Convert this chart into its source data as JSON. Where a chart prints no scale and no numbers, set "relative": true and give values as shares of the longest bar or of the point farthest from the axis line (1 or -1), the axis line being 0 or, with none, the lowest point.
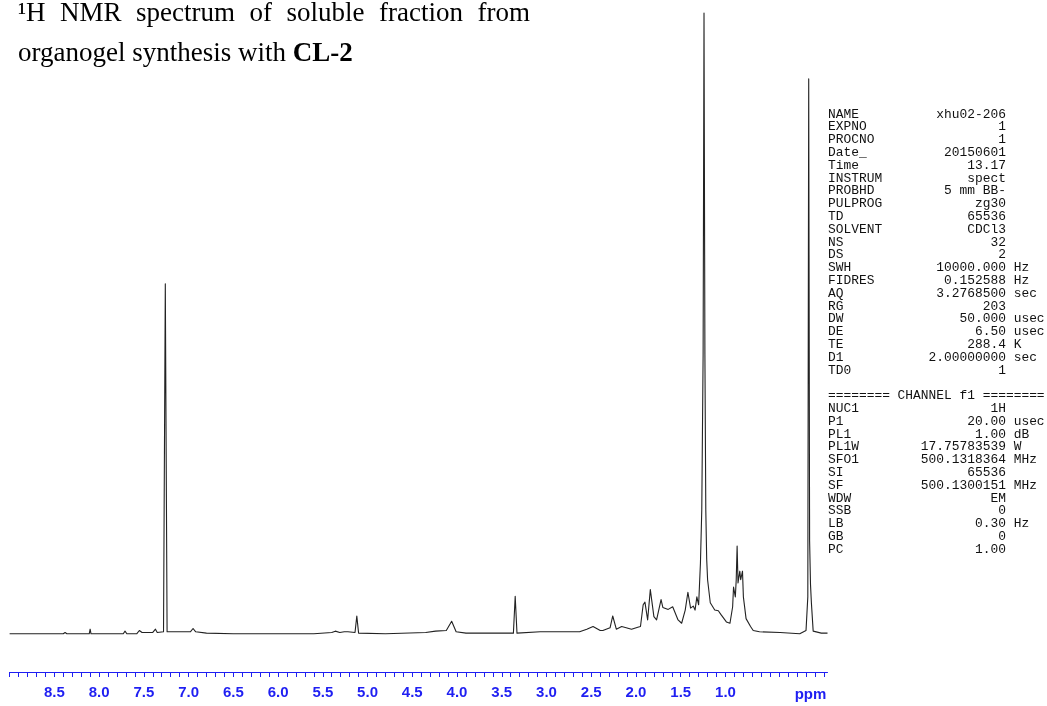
{
  "chart_data": {
    "type": "line",
    "title": "¹H NMR spectrum of soluble fraction from organogel synthesis with CL-2",
    "xlabel": "ppm",
    "relative": true,
    "color": "#222222",
    "marker": "none",
    "grid": false,
    "xlim": [
      9.0,
      -0.14
    ],
    "xticks": [
      {
        "value": 9,
        "label": null
      },
      {
        "value": 8.9,
        "label": null
      },
      {
        "value": 8.8,
        "label": null
      },
      {
        "value": 8.7,
        "label": null
      },
      {
        "value": 8.6,
        "label": null
      },
      8.5,
      {
        "value": 8.4,
        "label": null
      },
      {
        "value": 8.3,
        "label": null
      },
      {
        "value": 8.2,
        "label": null
      },
      {
        "value": 8.1,
        "label": null
      },
      {
        "value": 8,
        "label": "8.0"
      },
      {
        "value": 7.9,
        "label": null
      },
      {
        "value": 7.8,
        "label": null
      },
      {
        "value": 7.7,
        "label": null
      },
      {
        "value": 7.6,
        "label": null
      },
      7.5,
      {
        "value": 7.4,
        "label": null
      },
      {
        "value": 7.3,
        "label": null
      },
      {
        "value": 7.2,
        "label": null
      },
      {
        "value": 7.1,
        "label": null
      },
      {
        "value": 7,
        "label": "7.0"
      },
      {
        "value": 6.9,
        "label": null
      },
      {
        "value": 6.8,
        "label": null
      },
      {
        "value": 6.7,
        "label": null
      },
      {
        "value": 6.6,
        "label": null
      },
      6.5,
      {
        "value": 6.4,
        "label": null
      },
      {
        "value": 6.3,
        "label": null
      },
      {
        "value": 6.2,
        "label": null
      },
      {
        "value": 6.1,
        "label": null
      },
      {
        "value": 6,
        "label": "6.0"
      },
      {
        "value": 5.9,
        "label": null
      },
      {
        "value": 5.8,
        "label": null
      },
      {
        "value": 5.7,
        "label": null
      },
      {
        "value": 5.6,
        "label": null
      },
      5.5,
      {
        "value": 5.4,
        "label": null
      },
      {
        "value": 5.3,
        "label": null
      },
      {
        "value": 5.2,
        "label": null
      },
      {
        "value": 5.1,
        "label": null
      },
      {
        "value": 5,
        "label": "5.0"
      },
      {
        "value": 4.9,
        "label": null
      },
      {
        "value": 4.8,
        "label": null
      },
      {
        "value": 4.7,
        "label": null
      },
      {
        "value": 4.6,
        "label": null
      },
      4.5,
      {
        "value": 4.4,
        "label": null
      },
      {
        "value": 4.3,
        "label": null
      },
      {
        "value": 4.2,
        "label": null
      },
      {
        "value": 4.1,
        "label": null
      },
      {
        "value": 4,
        "label": "4.0"
      },
      {
        "value": 3.9,
        "label": null
      },
      {
        "value": 3.8,
        "label": null
      },
      {
        "value": 3.7,
        "label": null
      },
      {
        "value": 3.6,
        "label": null
      },
      3.5,
      {
        "value": 3.4,
        "label": null
      },
      {
        "value": 3.3,
        "label": null
      },
      {
        "value": 3.2,
        "label": null
      },
      {
        "value": 3.1,
        "label": null
      },
      {
        "value": 3,
        "label": "3.0"
      },
      {
        "value": 2.9,
        "label": null
      },
      {
        "value": 2.8,
        "label": null
      },
      {
        "value": 2.7,
        "label": null
      },
      {
        "value": 2.6,
        "label": null
      },
      2.5,
      {
        "value": 2.4,
        "label": null
      },
      {
        "value": 2.3,
        "label": null
      },
      {
        "value": 2.2,
        "label": null
      },
      {
        "value": 2.1,
        "label": null
      },
      {
        "value": 2,
        "label": "2.0"
      },
      {
        "value": 1.9,
        "label": null
      },
      {
        "value": 1.8,
        "label": null
      },
      {
        "value": 1.7,
        "label": null
      },
      {
        "value": 1.6,
        "label": null
      },
      1.5,
      {
        "value": 1.4,
        "label": null
      },
      {
        "value": 1.3,
        "label": null
      },
      {
        "value": 1.2,
        "label": null
      },
      {
        "value": 1.1,
        "label": null
      },
      {
        "value": 1,
        "label": "1.0"
      },
      {
        "value": 0.9,
        "label": null
      },
      {
        "value": 0.8,
        "label": null
      },
      {
        "value": 0.7,
        "label": null
      },
      {
        "value": 0.6,
        "label": null
      },
      {
        "value": 0.5,
        "label": null
      },
      {
        "value": 0.4,
        "label": null
      },
      {
        "value": 0.3,
        "label": null
      },
      {
        "value": 0.2,
        "label": null
      },
      {
        "value": 0.1,
        "label": null
      },
      {
        "value": 0,
        "label": null
      },
      {
        "value": -0.1,
        "label": null
      }
    ],
    "x": [
      9.0,
      8.4,
      8.38,
      8.36,
      8.11,
      8.1,
      8.09,
      7.73,
      7.71,
      7.69,
      7.58,
      7.55,
      7.52,
      7.4,
      7.37,
      7.35,
      7.28,
      7.26,
      7.24,
      7.1,
      6.98,
      6.95,
      6.92,
      6.8,
      6.5,
      5.6,
      5.4,
      5.36,
      5.31,
      5.26,
      5.22,
      5.14,
      5.12,
      5.1,
      4.8,
      4.35,
      4.24,
      4.12,
      4.06,
      4.01,
      3.9,
      3.37,
      3.35,
      3.33,
      3.07,
      3.0,
      2.75,
      2.63,
      2.55,
      2.48,
      2.4,
      2.37,
      2.29,
      2.26,
      2.22,
      2.16,
      2.05,
      1.98,
      1.95,
      1.92,
      1.9,
      1.87,
      1.84,
      1.8,
      1.77,
      1.72,
      1.7,
      1.64,
      1.59,
      1.53,
      1.49,
      1.45,
      1.42,
      1.39,
      1.36,
      1.34,
      1.32,
      1.3,
      1.28,
      1.265,
      1.25,
      1.24,
      1.23,
      1.22,
      1.21,
      1.2,
      1.17,
      1.12,
      1.08,
      1.05,
      0.99,
      0.95,
      0.92,
      0.91,
      0.89,
      0.88,
      0.87,
      0.86,
      0.84,
      0.83,
      0.81,
      0.8,
      0.77,
      0.72,
      0.69,
      0.62,
      0.39,
      0.17,
      0.1,
      0.08,
      0.07,
      0.06,
      0.05,
      0.04,
      0.02,
      -0.07,
      -0.14
    ],
    "values": [
      0.058,
      0.058,
      0.06,
      0.058,
      0.058,
      0.065,
      0.058,
      0.058,
      0.062,
      0.058,
      0.058,
      0.063,
      0.06,
      0.06,
      0.065,
      0.06,
      0.061,
      0.589,
      0.061,
      0.061,
      0.061,
      0.066,
      0.061,
      0.059,
      0.058,
      0.058,
      0.06,
      0.062,
      0.06,
      0.061,
      0.061,
      0.06,
      0.085,
      0.059,
      0.058,
      0.06,
      0.062,
      0.063,
      0.077,
      0.061,
      0.059,
      0.059,
      0.115,
      0.059,
      0.061,
      0.061,
      0.061,
      0.061,
      0.065,
      0.069,
      0.063,
      0.063,
      0.067,
      0.085,
      0.065,
      0.069,
      0.065,
      0.068,
      0.069,
      0.102,
      0.106,
      0.079,
      0.125,
      0.084,
      0.079,
      0.11,
      0.098,
      0.095,
      0.099,
      0.079,
      0.074,
      0.094,
      0.121,
      0.097,
      0.1,
      0.094,
      0.114,
      0.102,
      0.165,
      0.246,
      0.482,
      1,
      0.482,
      0.246,
      0.171,
      0.14,
      0.105,
      0.094,
      0.093,
      0.087,
      0.076,
      0.074,
      0.099,
      0.129,
      0.114,
      0.14,
      0.191,
      0.135,
      0.153,
      0.14,
      0.153,
      0.114,
      0.081,
      0.069,
      0.063,
      0.061,
      0.06,
      0.058,
      0.063,
      0.114,
      0.9,
      0.199,
      0.133,
      0.105,
      0.062,
      0.059,
      0.059
    ],
    "annotations": [
      "NAME\txhu02-206",
      "EXPNO\t1",
      "PROCNO\t1",
      "Date_\t20150601",
      "Time\t13.17",
      "INSTRUM\tspect",
      "PROBHD\t5 mm BB-",
      "PULPROG\tzg30",
      "TD\t65536",
      "SOLVENT\tCDCl3",
      "NS\t32",
      "DS\t2",
      "SWH\t10000.000\tHz",
      "FIDRES\t0.152588\tHz",
      "AQ\t3.2768500\tsec",
      "RG\t203",
      "DW\t50.000\tusec",
      "DE\t6.50\tusec",
      "TE\t288.4\tK",
      "D1\t2.00000000\tsec",
      "TD0\t1",
      "======== CHANNEL f1 ========",
      "NUC1\t1H",
      "P1\t20.00\tusec",
      "PL1\t1.00\tdB",
      "PL1W\t17.75783539\tW",
      "SFO1\t500.1318364\tMHz",
      "SI\t65536",
      "SF\t500.1300151\tMHz",
      "WDW\tEM",
      "SSB\t0",
      "LB\t0.30\tHz",
      "GB\t0",
      "PC\t1.00"
    ]
  }
}
